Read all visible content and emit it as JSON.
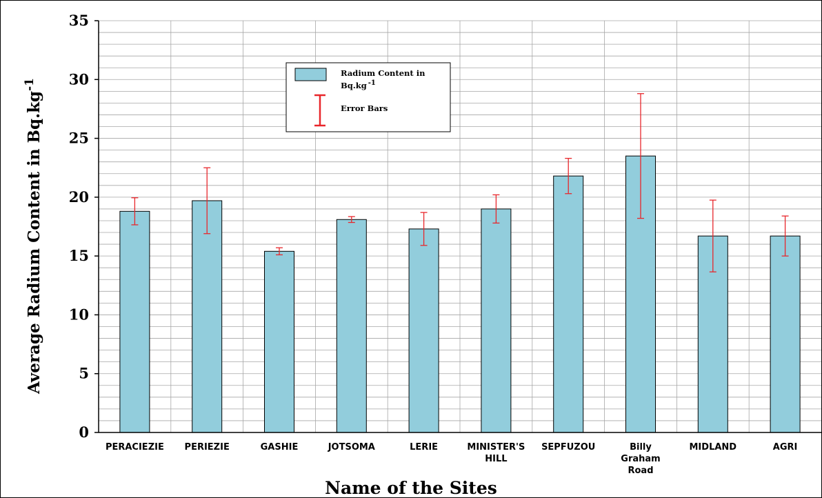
{
  "chart_data": {
    "type": "bar",
    "title": "",
    "xlabel": "Name of the Sites",
    "ylabel": "Average Radium Content in Bq.kg",
    "ylabel_sup": "-1",
    "ylim": [
      0,
      35
    ],
    "yticks": [
      0,
      5,
      10,
      15,
      20,
      25,
      30,
      35
    ],
    "grid": true,
    "legend_position": "top-center",
    "categories": [
      [
        "PERACIEZIE"
      ],
      [
        "PERIEZIE"
      ],
      [
        "GASHIE"
      ],
      [
        "JOTSOMA"
      ],
      [
        "LERIE"
      ],
      [
        "MINISTER'S",
        "HILL"
      ],
      [
        "SEPFUZOU"
      ],
      [
        "Billy",
        "Graham",
        "Road"
      ],
      [
        "MIDLAND"
      ],
      [
        "AGRI"
      ]
    ],
    "series": [
      {
        "name": "Radium Content in Bq.kg",
        "name_sup": "-1",
        "values": [
          18.8,
          19.7,
          15.4,
          18.1,
          17.3,
          19.0,
          21.8,
          23.5,
          16.7,
          16.7
        ],
        "error": [
          1.15,
          2.8,
          0.3,
          0.25,
          1.4,
          1.2,
          1.5,
          5.3,
          3.05,
          1.7
        ]
      }
    ],
    "legend": {
      "bar_label": "Radium Content in",
      "bar_label_line2": "Bq.kg",
      "bar_label_sup": "-1",
      "error_label": "Error Bars"
    },
    "colors": {
      "bar": "#92cddc",
      "error": "#e8262b",
      "grid": "#a6a6a6"
    }
  }
}
